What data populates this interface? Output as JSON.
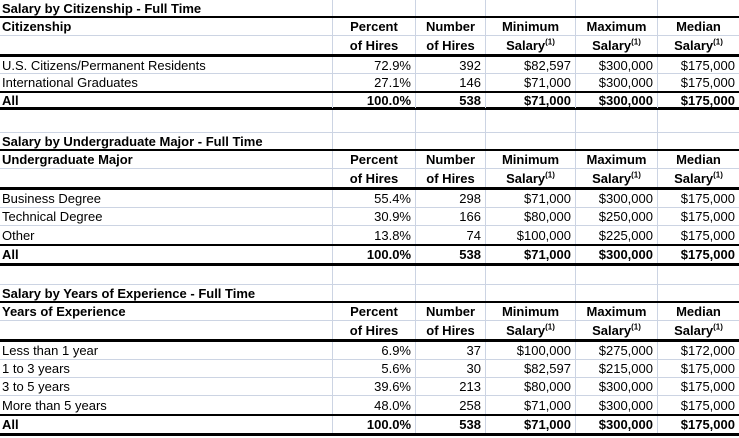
{
  "colors": {
    "bg": "#ffffff",
    "text": "#000000",
    "border": "#000000",
    "grid": "#ccd4e3"
  },
  "column_headers": [
    {
      "id": "percent",
      "line1": "Percent",
      "line2": "of Hires"
    },
    {
      "id": "number",
      "line1": "Number",
      "line2": "of Hires"
    },
    {
      "id": "minimum",
      "line1": "Minimum",
      "line2": "Salary",
      "footnote": "(1)"
    },
    {
      "id": "maximum",
      "line1": "Maximum",
      "line2": "Salary",
      "footnote": "(1)"
    },
    {
      "id": "median",
      "line1": "Median",
      "line2": "Salary",
      "footnote": "(1)"
    }
  ],
  "sections": [
    {
      "title": "Salary by Citizenship - Full Time",
      "row_label_header": "Citizenship",
      "rows": [
        {
          "label": "U.S. Citizens/Permanent Residents",
          "values": [
            "72.9%",
            "392",
            "$82,597",
            "$300,000",
            "$175,000"
          ]
        },
        {
          "label": "International Graduates",
          "values": [
            "27.1%",
            "146",
            "$71,000",
            "$300,000",
            "$175,000"
          ]
        }
      ],
      "total": {
        "label": "All",
        "values": [
          "100.0%",
          "538",
          "$71,000",
          "$300,000",
          "$175,000"
        ]
      }
    },
    {
      "title": "Salary by Undergraduate Major - Full Time",
      "row_label_header": "Undergraduate Major",
      "rows": [
        {
          "label": "Business Degree",
          "values": [
            "55.4%",
            "298",
            "$71,000",
            "$300,000",
            "$175,000"
          ]
        },
        {
          "label": "Technical Degree",
          "values": [
            "30.9%",
            "166",
            "$80,000",
            "$250,000",
            "$175,000"
          ]
        },
        {
          "label": "Other",
          "values": [
            "13.8%",
            "74",
            "$100,000",
            "$225,000",
            "$175,000"
          ]
        }
      ],
      "total": {
        "label": "All",
        "values": [
          "100.0%",
          "538",
          "$71,000",
          "$300,000",
          "$175,000"
        ]
      }
    },
    {
      "title": "Salary by Years of Experience - Full Time",
      "row_label_header": "Years of Experience",
      "rows": [
        {
          "label": "Less than 1 year",
          "values": [
            "6.9%",
            "37",
            "$100,000",
            "$275,000",
            "$172,000"
          ]
        },
        {
          "label": "1 to 3 years",
          "values": [
            "5.6%",
            "30",
            "$82,597",
            "$215,000",
            "$175,000"
          ]
        },
        {
          "label": "3 to 5 years",
          "values": [
            "39.6%",
            "213",
            "$80,000",
            "$300,000",
            "$175,000"
          ]
        },
        {
          "label": "More than 5 years",
          "values": [
            "48.0%",
            "258",
            "$71,000",
            "$300,000",
            "$175,000"
          ]
        }
      ],
      "total": {
        "label": "All",
        "values": [
          "100.0%",
          "538",
          "$71,000",
          "$300,000",
          "$175,000"
        ]
      }
    }
  ]
}
